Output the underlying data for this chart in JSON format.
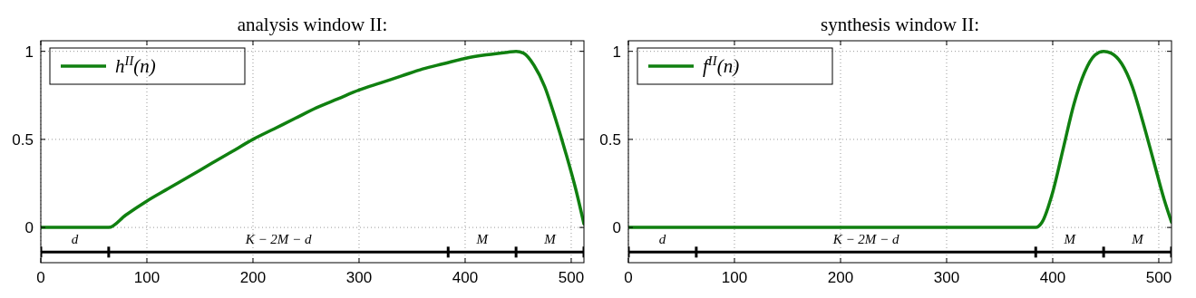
{
  "chart_data": [
    {
      "type": "line",
      "title": "analysis window II:",
      "xlim": [
        0,
        512
      ],
      "xticks": [
        0,
        100,
        200,
        300,
        400,
        500
      ],
      "ylim": [
        -0.2,
        1.06
      ],
      "yticks": [
        0,
        0.5,
        1
      ],
      "grid": true,
      "legend": "top left",
      "line_style": "solid",
      "series": [
        {
          "name": "h$^{II}$(n)",
          "color": "#108010",
          "x": [
            0,
            64,
            80,
            100,
            120,
            140,
            160,
            180,
            200,
            220,
            240,
            260,
            280,
            300,
            320,
            340,
            360,
            380,
            400,
            420,
            440,
            448,
            455,
            465,
            475,
            485,
            495,
            505,
            512
          ],
          "values": [
            0,
            0,
            0.07,
            0.15,
            0.22,
            0.29,
            0.36,
            0.43,
            0.5,
            0.56,
            0.62,
            0.68,
            0.73,
            0.78,
            0.82,
            0.86,
            0.9,
            0.93,
            0.96,
            0.98,
            0.995,
            1,
            0.99,
            0.92,
            0.8,
            0.62,
            0.42,
            0.2,
            0.02
          ]
        },
        {
          "color": "#000000",
          "x": [
            0,
            64,
            384,
            448,
            512
          ],
          "values": [
            -0.14,
            -0.14,
            -0.14,
            -0.14,
            -0.14
          ]
        }
      ],
      "annotations": [
        "d",
        "K − 2M − d",
        "M",
        "M"
      ]
    },
    {
      "type": "line",
      "title": "synthesis window II:",
      "xlim": [
        0,
        512
      ],
      "xticks": [
        0,
        100,
        200,
        300,
        400,
        500
      ],
      "ylim": [
        -0.2,
        1.06
      ],
      "yticks": [
        0,
        0.5,
        1
      ],
      "grid": true,
      "legend": "top left",
      "line_style": "solid",
      "series": [
        {
          "name": "f$^{II}$(n)",
          "color": "#108010",
          "x": [
            0,
            384,
            390,
            400,
            410,
            420,
            430,
            440,
            448,
            455,
            465,
            475,
            485,
            495,
            505,
            512
          ],
          "values": [
            0,
            0,
            0.03,
            0.2,
            0.45,
            0.7,
            0.88,
            0.98,
            1,
            0.99,
            0.93,
            0.8,
            0.6,
            0.38,
            0.16,
            0.03
          ]
        },
        {
          "color": "#000000",
          "x": [
            0,
            64,
            384,
            448,
            512
          ],
          "values": [
            -0.14,
            -0.14,
            -0.14,
            -0.14,
            -0.14
          ]
        }
      ],
      "annotations": [
        "d",
        "K − 2M − d",
        "M",
        "M"
      ]
    }
  ]
}
